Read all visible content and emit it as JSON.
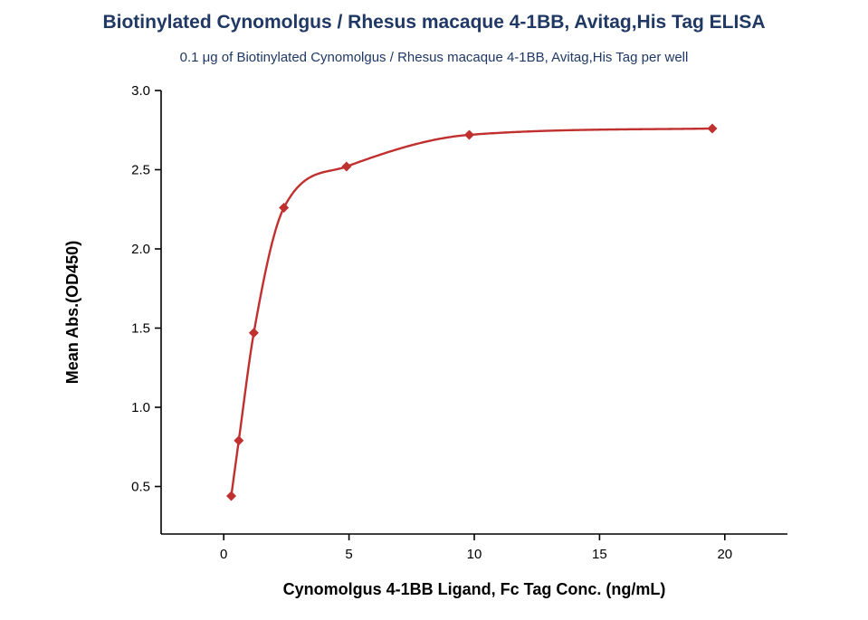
{
  "chart_data": {
    "type": "scatter",
    "title": "Biotinylated Cynomolgus / Rhesus macaque 4-1BB, Avitag,His Tag ELISA",
    "subtitle": "0.1 μg of Biotinylated Cynomolgus / Rhesus macaque 4-1BB, Avitag,His Tag per well",
    "xlabel": "Cynomolgus 4-1BB Ligand, Fc Tag Conc. (ng/mL)",
    "ylabel": "Mean Abs.(OD450)",
    "x": [
      0.3,
      0.6,
      1.2,
      2.4,
      4.9,
      9.8,
      19.5
    ],
    "y": [
      0.44,
      0.79,
      1.47,
      2.26,
      2.52,
      2.72,
      2.76
    ],
    "xlim": [
      -2.5,
      22.5
    ],
    "ylim": [
      0.2,
      3.0
    ],
    "xticks": [
      0,
      5,
      10,
      15,
      20
    ],
    "yticks": [
      0.5,
      1.0,
      1.5,
      2.0,
      2.5,
      3.0
    ],
    "grid": false,
    "legend": "none",
    "marker": "diamond",
    "series_color": "#c0302e",
    "axis_color": "#000000",
    "title_color": "#1f3864",
    "subtitle_color": "#1f3864"
  }
}
